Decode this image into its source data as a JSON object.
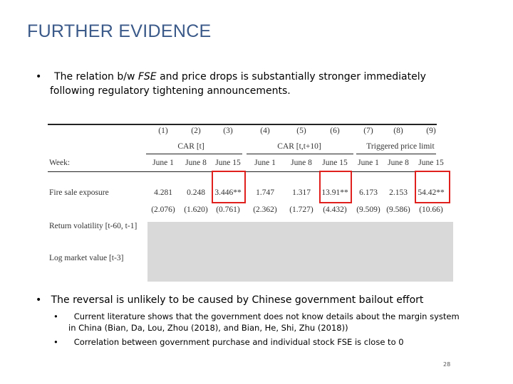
{
  "header": {
    "title": "FURTHER EVIDENCE"
  },
  "bullets": [
    {
      "text_before": "The relation b/w ",
      "emphasis": "FSE",
      "text_after": " and price drops is substantially stronger immediately following regulatory tightening announcements."
    },
    {
      "text": "The reversal is unlikely to be caused by Chinese government bailout effort",
      "sub_bullets": [
        "Current literature shows that the government does not know details about the margin system in China (Bian, Da, Lou, Zhou (2018), and Bian, He, Shi, Zhu (2018))",
        "Correlation between government purchase and individual stock FSE is close to 0"
      ]
    }
  ],
  "table": {
    "column_numbers": [
      "(1)",
      "(2)",
      "(3)",
      "(4)",
      "(5)",
      "(6)",
      "(7)",
      "(8)",
      "(9)"
    ],
    "groups": [
      "CAR [t]",
      "CAR [t,t+10]",
      "Triggered price limit"
    ],
    "week_label": "Week:",
    "weeks": [
      "June 1",
      "June 8",
      "June 15",
      "June 1",
      "June 8",
      "June 15",
      "June 1",
      "June 8",
      "June 15"
    ],
    "rows": [
      {
        "label": "Fire sale exposure",
        "cells": [
          "4.281",
          "0.248",
          "3.446**",
          "1.747",
          "1.317",
          "13.91**",
          "6.173",
          "2.153",
          "54.42**"
        ]
      },
      {
        "label": null,
        "cells": [
          "(2.076)",
          "(1.620)",
          "(0.761)",
          "(2.362)",
          "(1.727)",
          "(4.432)",
          "(9.509)",
          "(9.586)",
          "(10.66)"
        ]
      },
      {
        "label": "Return volatility [t-60, t-1]",
        "cells": []
      },
      {
        "label": "Log market value [t-3]",
        "cells": []
      }
    ]
  },
  "footer": {
    "page_number": "28"
  }
}
